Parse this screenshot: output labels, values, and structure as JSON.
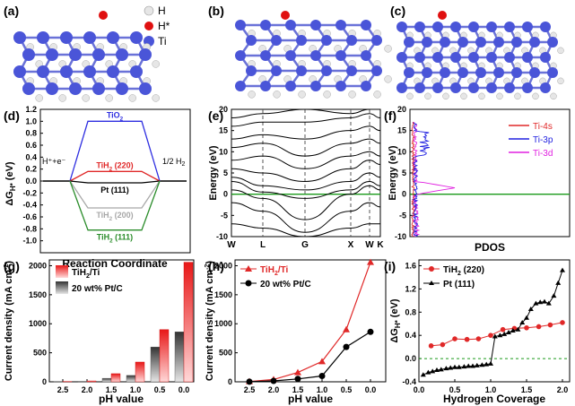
{
  "colors": {
    "ti": "#4a55d8",
    "h": "#e6e6e6",
    "hstar": "#e01010",
    "tio2": "#2d2de0",
    "tih2_220": "#e02828",
    "pt111": "#000000",
    "tih2_200": "#a8a8a8",
    "tih2_111": "#2a8c2a",
    "ti4s": "#e02828",
    "ti3p": "#2020e0",
    "ti3d": "#e020e0",
    "green": "#1a9a1a"
  },
  "panels": {
    "a": {
      "label": "(a)",
      "legend": [
        {
          "sym": "H",
          "icon": "h-atom-icon"
        },
        {
          "sym": "H*",
          "icon": "hstar-atom-icon"
        },
        {
          "sym": "Ti",
          "icon": "ti-atom-icon"
        }
      ]
    },
    "b": {
      "label": "(b)"
    },
    "c": {
      "label": "(c)"
    },
    "d": {
      "label": "(d)",
      "ylabel": "ΔG",
      "ylabel_sub": "H*",
      "ylabel_unit": " (eV)",
      "xlabel": "Reaction Coordinate",
      "left": "H⁺+e⁻",
      "right": "1/2 H",
      "right_sub": "2",
      "yticks": [
        "1.2",
        "1.0",
        "0.8",
        "0.6",
        "0.4",
        "0.2",
        "0.0",
        "-0.2",
        "-0.4",
        "-0.6",
        "-0.8",
        "-1.0"
      ],
      "levels": [
        {
          "name": "TiO",
          "sub": "2",
          "g": 1.0
        },
        {
          "name": "TiH",
          "sub": "2",
          "suffix": " (220)",
          "g": 0.16
        },
        {
          "name": "Pt (111)",
          "sub": "",
          "suffix": "",
          "g": -0.03
        },
        {
          "name": "TiH",
          "sub": "2",
          "suffix": " (200)",
          "g": -0.45
        },
        {
          "name": "TiH",
          "sub": "2",
          "suffix": " (111)",
          "g": -0.82
        }
      ]
    },
    "e": {
      "label": "(e)",
      "ylabel": "Energy (eV)",
      "yticks": [
        "20",
        "15",
        "10",
        "5",
        "0",
        "-5",
        "-10"
      ],
      "kpoints": [
        "W",
        "L",
        "G",
        "X",
        "W",
        "K"
      ]
    },
    "f": {
      "label": "(f)",
      "ylabel": "Energy (eV)",
      "xlabel": "PDOS",
      "yticks": [
        "20",
        "15",
        "10",
        "5",
        "0",
        "-5",
        "-10"
      ],
      "legend": [
        {
          "name": "Ti-4s"
        },
        {
          "name": "Ti-3p"
        },
        {
          "name": "Ti-3d"
        }
      ]
    },
    "g": {
      "label": "(g)",
      "ylabel": "Current density (mA cm",
      "ylabel_sup": "-2",
      "ylabel_end": ")",
      "xlabel": "pH value",
      "yticks": [
        "2000",
        "1500",
        "1000",
        "500",
        "0"
      ],
      "xticks": [
        "2.5",
        "2.0",
        "1.5",
        "1.0",
        "0.5",
        "0.0"
      ],
      "legend": [
        {
          "name": "TiH",
          "sub": "2",
          "suffix": "/Ti"
        },
        {
          "name": "20 wt% Pt/C",
          "sub": "",
          "suffix": ""
        }
      ]
    },
    "h": {
      "label": "(h)",
      "ylabel": "Current density (mA cm",
      "ylabel_sup": "-2",
      "ylabel_end": ")",
      "xlabel": "pH value",
      "yticks": [
        "2000",
        "1500",
        "1000",
        "500",
        "0"
      ],
      "xticks": [
        "2.5",
        "2.0",
        "1.5",
        "1.0",
        "0.5",
        "0.0"
      ],
      "legend": [
        {
          "name": "TiH",
          "sub": "2",
          "suffix": "/Ti"
        },
        {
          "name": "20 wt% Pt/C",
          "sub": "",
          "suffix": ""
        }
      ]
    },
    "i": {
      "label": "(i)",
      "ylabel": "ΔG",
      "ylabel_sub": "H*",
      "ylabel_unit": " (eV)",
      "xlabel": "Hydrogen Coverage",
      "yticks": [
        "1.6",
        "1.2",
        "0.8",
        "0.4",
        "0.0",
        "-0.4"
      ],
      "xticks": [
        "0.0",
        "0.5",
        "1.0",
        "1.5",
        "2.0"
      ],
      "legend": [
        {
          "name": "TiH",
          "sub": "2",
          "suffix": " (220)"
        },
        {
          "name": "Pt (111)",
          "sub": "",
          "suffix": ""
        }
      ]
    }
  },
  "chart_data": [
    {
      "type": "bar",
      "panel": "g",
      "categories": [
        "2.5",
        "2.0",
        "1.5",
        "1.0",
        "0.5",
        "0.0"
      ],
      "series": [
        {
          "name": "TiH2/Ti",
          "values": [
            5,
            15,
            140,
            340,
            900,
            2060
          ]
        },
        {
          "name": "20 wt% Pt/C",
          "values": [
            2,
            8,
            60,
            110,
            600,
            860
          ]
        }
      ],
      "xlabel": "pH value",
      "ylabel": "Current density (mA cm-2)",
      "ylim": [
        0,
        2100
      ]
    },
    {
      "type": "line",
      "panel": "h",
      "x": [
        2.5,
        2.0,
        1.5,
        1.0,
        0.5,
        0.0
      ],
      "series": [
        {
          "name": "TiH2/Ti",
          "values": [
            5,
            40,
            160,
            350,
            900,
            2060
          ]
        },
        {
          "name": "20 wt% Pt/C",
          "values": [
            2,
            15,
            50,
            100,
            600,
            860
          ]
        }
      ],
      "xlabel": "pH value",
      "ylabel": "Current density (mA cm-2)",
      "ylim": [
        0,
        2100
      ]
    },
    {
      "type": "line",
      "panel": "i",
      "series": [
        {
          "name": "TiH2 (220)",
          "x": [
            0.17,
            0.33,
            0.5,
            0.67,
            0.83,
            1.0,
            1.17,
            1.33,
            1.5,
            1.67,
            1.83,
            2.0
          ],
          "values": [
            0.22,
            0.24,
            0.34,
            0.33,
            0.34,
            0.4,
            0.5,
            0.52,
            0.53,
            0.55,
            0.58,
            0.62
          ]
        },
        {
          "name": "Pt (111)",
          "x": [
            0.06,
            0.13,
            0.19,
            0.25,
            0.31,
            0.38,
            0.44,
            0.5,
            0.56,
            0.63,
            0.69,
            0.75,
            0.81,
            0.88,
            0.94,
            1.0,
            1.06,
            1.13,
            1.19,
            1.25,
            1.31,
            1.38,
            1.44,
            1.5,
            1.56,
            1.63,
            1.69,
            1.75,
            1.81,
            1.88,
            1.94,
            2.0
          ],
          "values": [
            -0.28,
            -0.24,
            -0.22,
            -0.2,
            -0.19,
            -0.17,
            -0.16,
            -0.15,
            -0.15,
            -0.14,
            -0.13,
            -0.13,
            -0.12,
            -0.11,
            -0.1,
            -0.09,
            0.38,
            0.4,
            0.42,
            0.45,
            0.48,
            0.5,
            0.62,
            0.7,
            0.85,
            0.95,
            0.97,
            0.98,
            0.95,
            1.08,
            1.3,
            1.52
          ]
        }
      ],
      "xlabel": "Hydrogen Coverage",
      "ylabel": "ΔGH* (eV)",
      "xlim": [
        0,
        2.1
      ],
      "ylim": [
        -0.4,
        1.7
      ]
    }
  ]
}
